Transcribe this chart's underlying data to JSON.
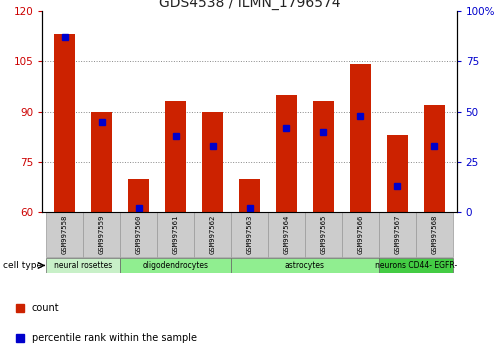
{
  "title": "GDS4538 / ILMN_1796574",
  "samples": [
    "GSM997558",
    "GSM997559",
    "GSM997560",
    "GSM997561",
    "GSM997562",
    "GSM997563",
    "GSM997564",
    "GSM997565",
    "GSM997566",
    "GSM997567",
    "GSM997568"
  ],
  "counts": [
    113,
    90,
    70,
    93,
    90,
    70,
    95,
    93,
    104,
    83,
    92
  ],
  "percentile_ranks_pct": [
    87,
    45,
    2,
    38,
    33,
    2,
    42,
    40,
    48,
    13,
    33
  ],
  "ylim_left": [
    60,
    120
  ],
  "yticks_left": [
    60,
    75,
    90,
    105,
    120
  ],
  "ylim_right": [
    0,
    100
  ],
  "yticks_right": [
    0,
    25,
    50,
    75,
    100
  ],
  "cell_types": [
    {
      "label": "neural rosettes",
      "start": 0,
      "end": 2,
      "color": "#c8f0c8"
    },
    {
      "label": "oligodendrocytes",
      "start": 2,
      "end": 5,
      "color": "#90ee90"
    },
    {
      "label": "astrocytes",
      "start": 5,
      "end": 9,
      "color": "#90ee90"
    },
    {
      "label": "neurons CD44- EGFR-",
      "start": 9,
      "end": 11,
      "color": "#44cc44"
    }
  ],
  "bar_color": "#cc2200",
  "marker_color": "#0000cc",
  "bar_width": 0.55,
  "tick_label_color_left": "#cc0000",
  "tick_label_color_right": "#0000cc",
  "grid_color": "#888888",
  "sample_box_color": "#cccccc"
}
